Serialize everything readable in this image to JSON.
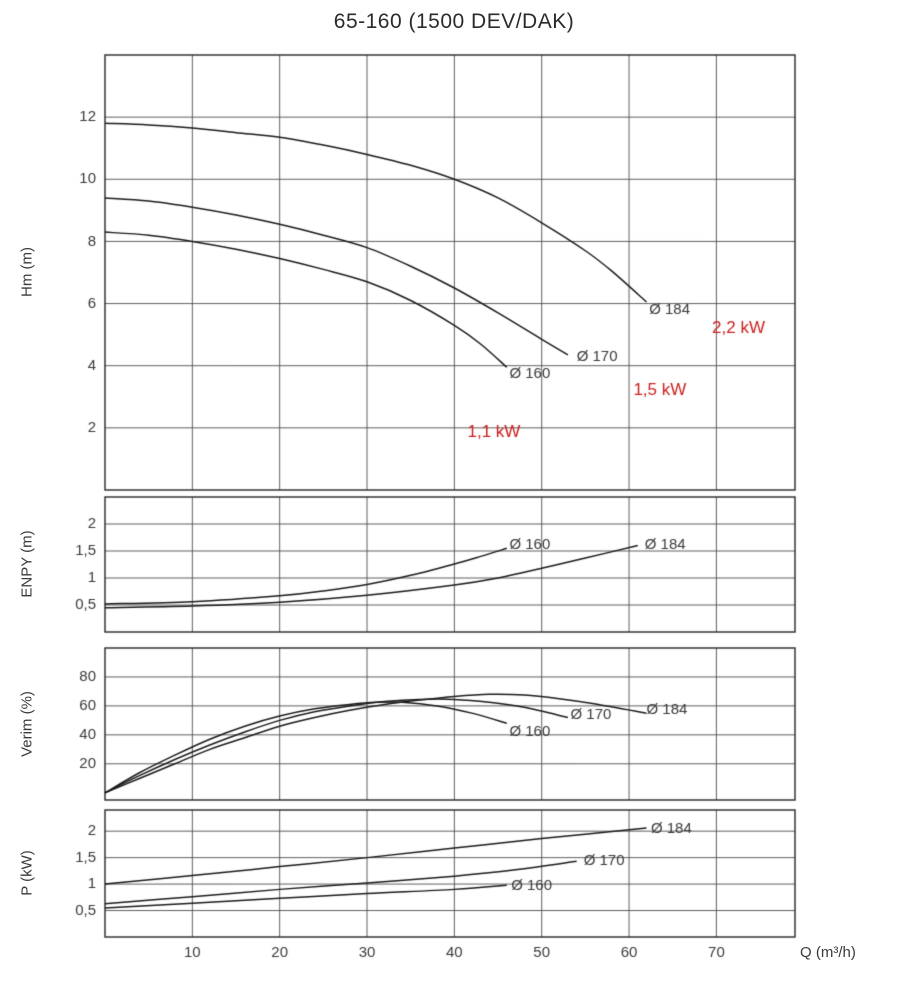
{
  "title": "65-160 (1500 DEV/DAK)",
  "x_axis": {
    "label": "Q (m³/h)",
    "min": 0,
    "max": 79,
    "ticks": [
      10,
      20,
      30,
      40,
      50,
      60,
      70
    ],
    "tick_labels": [
      "10",
      "20",
      "30",
      "40",
      "50",
      "60",
      "70"
    ]
  },
  "colors": {
    "curve": "#1b1b1b",
    "grid": "#4d4d4d",
    "border": "#262626",
    "text": "#3a3a3a",
    "power_label": "#cc1f1f",
    "background": "#ffffff"
  },
  "chart_data": [
    {
      "type": "line",
      "name": "head-curves",
      "ylabel": "Hm (m)",
      "ylim": [
        0,
        14
      ],
      "yticks": [
        2,
        4,
        6,
        8,
        10,
        12
      ],
      "ytick_labels": [
        "2",
        "4",
        "6",
        "8",
        "10",
        "12"
      ],
      "series": [
        {
          "name": "Ø 184",
          "label_at": [
            62.3,
            5.8
          ],
          "points": [
            [
              0,
              11.8
            ],
            [
              5,
              11.75
            ],
            [
              10,
              11.65
            ],
            [
              15,
              11.5
            ],
            [
              20,
              11.35
            ],
            [
              25,
              11.1
            ],
            [
              30,
              10.8
            ],
            [
              35,
              10.45
            ],
            [
              40,
              10.0
            ],
            [
              45,
              9.4
            ],
            [
              50,
              8.6
            ],
            [
              55,
              7.7
            ],
            [
              58,
              7.05
            ],
            [
              62,
              6.05
            ]
          ]
        },
        {
          "name": "Ø 170",
          "label_at": [
            54.0,
            4.3
          ],
          "points": [
            [
              0,
              9.4
            ],
            [
              5,
              9.3
            ],
            [
              10,
              9.1
            ],
            [
              15,
              8.85
            ],
            [
              20,
              8.55
            ],
            [
              25,
              8.2
            ],
            [
              30,
              7.8
            ],
            [
              35,
              7.2
            ],
            [
              40,
              6.5
            ],
            [
              45,
              5.7
            ],
            [
              50,
              4.85
            ],
            [
              53,
              4.35
            ]
          ]
        },
        {
          "name": "Ø 160",
          "label_at": [
            46.3,
            3.75
          ],
          "points": [
            [
              0,
              8.3
            ],
            [
              5,
              8.2
            ],
            [
              10,
              8.0
            ],
            [
              15,
              7.75
            ],
            [
              20,
              7.45
            ],
            [
              25,
              7.1
            ],
            [
              30,
              6.7
            ],
            [
              35,
              6.1
            ],
            [
              40,
              5.3
            ],
            [
              43,
              4.7
            ],
            [
              46,
              3.95
            ]
          ]
        }
      ],
      "annotations": [
        {
          "text": "1,1 kW",
          "q": 41.5,
          "v": 1.85
        },
        {
          "text": "1,5 kW",
          "q": 60.5,
          "v": 3.2
        },
        {
          "text": "2,2 kW",
          "q": 69.5,
          "v": 5.2
        }
      ]
    },
    {
      "type": "line",
      "name": "npsh-curves",
      "ylabel": "ENPY (m)",
      "ylim": [
        0,
        2.5
      ],
      "yticks": [
        0.5,
        1,
        1.5,
        2
      ],
      "ytick_labels": [
        "0,5",
        "1",
        "1,5",
        "2"
      ],
      "series": [
        {
          "name": "Ø 160",
          "label_at": [
            46.3,
            1.62
          ],
          "points": [
            [
              0,
              0.52
            ],
            [
              10,
              0.56
            ],
            [
              20,
              0.67
            ],
            [
              25,
              0.76
            ],
            [
              30,
              0.88
            ],
            [
              35,
              1.05
            ],
            [
              40,
              1.26
            ],
            [
              43,
              1.4
            ],
            [
              46,
              1.55
            ]
          ]
        },
        {
          "name": "Ø 184",
          "label_at": [
            61.8,
            1.62
          ],
          "points": [
            [
              0,
              0.45
            ],
            [
              10,
              0.48
            ],
            [
              20,
              0.55
            ],
            [
              30,
              0.68
            ],
            [
              40,
              0.87
            ],
            [
              45,
              1.0
            ],
            [
              50,
              1.18
            ],
            [
              55,
              1.37
            ],
            [
              61,
              1.6
            ]
          ]
        }
      ],
      "annotations": []
    },
    {
      "type": "line",
      "name": "efficiency-curves",
      "ylabel": "Verim (%)",
      "ylim": [
        -5,
        100
      ],
      "yticks": [
        20,
        40,
        60,
        80
      ],
      "ytick_labels": [
        "20",
        "40",
        "60",
        "80"
      ],
      "series": [
        {
          "name": "Ø 160",
          "label_at": [
            46.3,
            42
          ],
          "points": [
            [
              0,
              0
            ],
            [
              4,
              14
            ],
            [
              8,
              26
            ],
            [
              12,
              37
            ],
            [
              16,
              46
            ],
            [
              20,
              53
            ],
            [
              24,
              58
            ],
            [
              28,
              61
            ],
            [
              31,
              62.5
            ],
            [
              34,
              62.5
            ],
            [
              38,
              60
            ],
            [
              42,
              55
            ],
            [
              46,
              48
            ]
          ]
        },
        {
          "name": "Ø 170",
          "label_at": [
            53.3,
            54
          ],
          "points": [
            [
              0,
              0
            ],
            [
              4,
              12
            ],
            [
              8,
              23
            ],
            [
              12,
              33
            ],
            [
              16,
              42
            ],
            [
              20,
              50
            ],
            [
              24,
              56
            ],
            [
              28,
              60
            ],
            [
              32,
              63
            ],
            [
              36,
              64.5
            ],
            [
              40,
              64.5
            ],
            [
              44,
              62.5
            ],
            [
              48,
              59
            ],
            [
              53,
              52
            ]
          ]
        },
        {
          "name": "Ø 184",
          "label_at": [
            62.0,
            57
          ],
          "points": [
            [
              0,
              0
            ],
            [
              4,
              10
            ],
            [
              8,
              20
            ],
            [
              12,
              30
            ],
            [
              16,
              38
            ],
            [
              20,
              46
            ],
            [
              24,
              52
            ],
            [
              28,
              57
            ],
            [
              32,
              61
            ],
            [
              36,
              64
            ],
            [
              40,
              66.5
            ],
            [
              44,
              68
            ],
            [
              48,
              67.5
            ],
            [
              52,
              65
            ],
            [
              56,
              61.5
            ],
            [
              62,
              55
            ]
          ]
        }
      ],
      "annotations": []
    },
    {
      "type": "line",
      "name": "power-curves",
      "ylabel": "P (kW)",
      "ylim": [
        0,
        2.4
      ],
      "yticks": [
        0.5,
        1,
        1.5,
        2
      ],
      "ytick_labels": [
        "0,5",
        "1",
        "1,5",
        "2"
      ],
      "series": [
        {
          "name": "Ø 184",
          "label_at": [
            62.5,
            2.05
          ],
          "points": [
            [
              0,
              1.0
            ],
            [
              10,
              1.16
            ],
            [
              20,
              1.33
            ],
            [
              30,
              1.5
            ],
            [
              40,
              1.68
            ],
            [
              50,
              1.86
            ],
            [
              62,
              2.06
            ]
          ]
        },
        {
          "name": "Ø 170",
          "label_at": [
            54.8,
            1.43
          ],
          "points": [
            [
              0,
              0.63
            ],
            [
              10,
              0.76
            ],
            [
              20,
              0.9
            ],
            [
              30,
              1.02
            ],
            [
              40,
              1.15
            ],
            [
              47,
              1.27
            ],
            [
              54,
              1.43
            ]
          ]
        },
        {
          "name": "Ø 160",
          "label_at": [
            46.5,
            0.97
          ],
          "points": [
            [
              0,
              0.55
            ],
            [
              10,
              0.64
            ],
            [
              20,
              0.73
            ],
            [
              30,
              0.82
            ],
            [
              40,
              0.9
            ],
            [
              46,
              0.98
            ]
          ]
        }
      ],
      "annotations": []
    }
  ]
}
